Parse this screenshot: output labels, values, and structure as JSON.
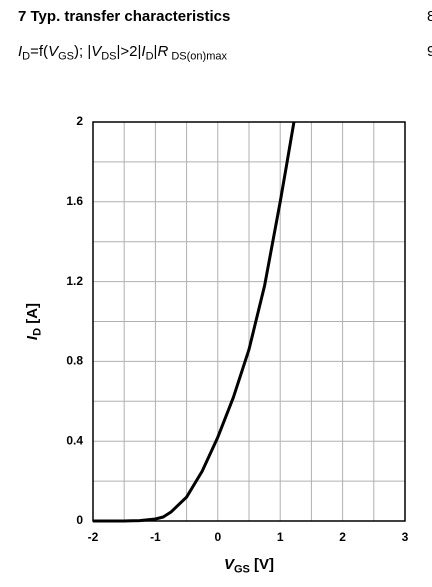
{
  "chart_data": {
    "type": "line",
    "title": "7 Typ. transfer characteristics",
    "subtitle": [
      {
        "text": "I",
        "style": "italic"
      },
      {
        "text": "D",
        "style": "sub"
      },
      {
        "text": "=f(",
        "style": "normal"
      },
      {
        "text": "V",
        "style": "italic"
      },
      {
        "text": "GS",
        "style": "sub"
      },
      {
        "text": "); |",
        "style": "normal"
      },
      {
        "text": "V",
        "style": "italic"
      },
      {
        "text": "DS",
        "style": "sub"
      },
      {
        "text": "|>2|",
        "style": "normal"
      },
      {
        "text": "I",
        "style": "italic"
      },
      {
        "text": "D",
        "style": "sub"
      },
      {
        "text": "|",
        "style": "normal"
      },
      {
        "text": "R",
        "style": "italic"
      },
      {
        "text": " DS(on)max",
        "style": "sub"
      }
    ],
    "margin_fragments": [
      "8",
      "9"
    ],
    "x_label": [
      {
        "text": "V",
        "style": "italic"
      },
      {
        "text": "GS",
        "style": "sub"
      },
      {
        "text": " [V]",
        "style": "normal"
      }
    ],
    "y_label": [
      {
        "text": "I",
        "style": "italic"
      },
      {
        "text": "D",
        "style": "sub"
      },
      {
        "text": " [A]",
        "style": "normal"
      }
    ],
    "x": [
      -2,
      -1.5,
      -1.25,
      -1,
      -0.875,
      -0.75,
      -0.5,
      -0.25,
      0,
      0.25,
      0.5,
      0.75,
      1,
      1.1,
      1.22
    ],
    "series": [
      {
        "name": "ID",
        "color": "#000000",
        "values": [
          0,
          0,
          0.002,
          0.01,
          0.02,
          0.045,
          0.12,
          0.25,
          0.42,
          0.62,
          0.86,
          1.18,
          1.6,
          1.78,
          2
        ]
      }
    ],
    "xlim": [
      -2,
      3
    ],
    "ylim": [
      0,
      2
    ],
    "xticks": [
      -2,
      -1,
      0,
      1,
      2,
      3
    ],
    "yticks": [
      0,
      0.4,
      0.8,
      1.2,
      1.6,
      2
    ],
    "x_minor_grid": [
      -1.5,
      -0.5,
      0.5,
      1.5,
      2.5
    ],
    "y_minor_grid": [
      0.2,
      0.6,
      1,
      1.4,
      1.8
    ],
    "grid": true
  }
}
